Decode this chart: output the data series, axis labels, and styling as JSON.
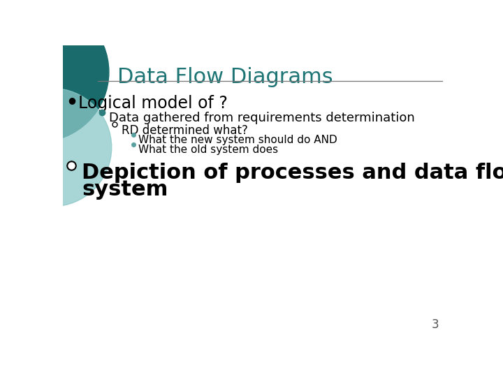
{
  "title": "Data Flow Diagrams",
  "title_color": "#1D7474",
  "background_color": "#FFFFFF",
  "line_color": "#555555",
  "bullet1_text": "Logical model of ?",
  "bullet2_text": "Data gathered from requirements determination",
  "bullet3_text": "RD determined what?",
  "sub1_text": "What the new system should do AND",
  "sub2_text": "What the old system does",
  "bullet4_line1": "Depiction of processes and data flows of a",
  "bullet4_line2": "system",
  "page_num": "3",
  "teal_dark": "#1A6B6B",
  "teal_light": "#8BC8C8"
}
